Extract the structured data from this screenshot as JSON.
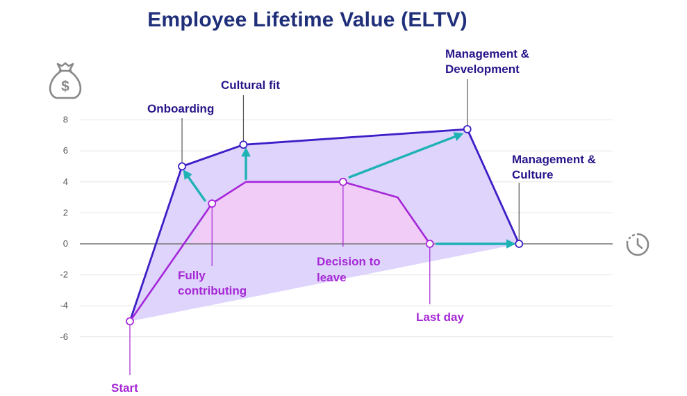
{
  "colors": {
    "title": "#1f2f7a",
    "upper_line": "#3d1ec7",
    "upper_fill": "#d8ccfb",
    "lower_line": "#a626d9",
    "lower_fill": "#f3cbf6",
    "arrow": "#1fb2b5",
    "grid": "#e6e6e6",
    "baseline": "#777777",
    "icon": "#888888",
    "upper_text": "#27158a",
    "lower_text": "#a627d6"
  },
  "icons": {
    "money": "money-bag-icon",
    "time": "clock-history-icon"
  },
  "chart_data": {
    "type": "line",
    "title": "Employee Lifetime Value (ELTV)",
    "xlabel": "",
    "ylabel": "",
    "ylim": [
      -6.5,
      8
    ],
    "yticks": [
      8,
      6,
      4,
      2,
      0,
      -2,
      -4,
      -6
    ],
    "grid": true,
    "series": [
      {
        "points": [
          [
            0,
            -5
          ],
          [
            1.46,
            5
          ],
          [
            3.18,
            6.4
          ],
          [
            9.45,
            7.4
          ],
          [
            10.9,
            0
          ]
        ]
      },
      {
        "points": [
          [
            0,
            -5
          ],
          [
            2.3,
            2.6
          ],
          [
            3.25,
            4
          ],
          [
            5.97,
            4
          ],
          [
            7.5,
            3
          ],
          [
            8.4,
            0
          ]
        ]
      }
    ],
    "annotations": [
      {
        "id": "start",
        "text": "Start",
        "x": 0,
        "y": -5,
        "group": "lower"
      },
      {
        "id": "onboarding",
        "text": "Onboarding",
        "x": 1.46,
        "y": 5,
        "group": "upper"
      },
      {
        "id": "cultural-fit",
        "text": "Cultural fit",
        "x": 3.18,
        "y": 6.4,
        "group": "upper"
      },
      {
        "id": "mgmt-development",
        "text": "Management & Development",
        "x": 9.45,
        "y": 7.4,
        "group": "upper"
      },
      {
        "id": "mgmt-culture",
        "text": "Management & Culture",
        "x": 10.9,
        "y": 0,
        "group": "upper"
      },
      {
        "id": "fully-contributing",
        "text": "Fully contributing",
        "x": 2.3,
        "y": 2.6,
        "group": "lower"
      },
      {
        "id": "decision-to-leave",
        "text": "Decision to leave",
        "x": 5.97,
        "y": 4,
        "group": "lower"
      },
      {
        "id": "last-day",
        "text": "Last day",
        "x": 8.4,
        "y": 0,
        "group": "lower"
      }
    ],
    "arrows": [
      {
        "from": [
          2.1,
          2.8
        ],
        "to": [
          1.55,
          4.6
        ]
      },
      {
        "from": [
          3.25,
          4.2
        ],
        "to": [
          3.25,
          6.0
        ]
      },
      {
        "from": [
          6.15,
          4.3
        ],
        "to": [
          9.25,
          7.05
        ]
      },
      {
        "from": [
          8.6,
          0
        ],
        "to": [
          10.7,
          0
        ]
      }
    ]
  }
}
